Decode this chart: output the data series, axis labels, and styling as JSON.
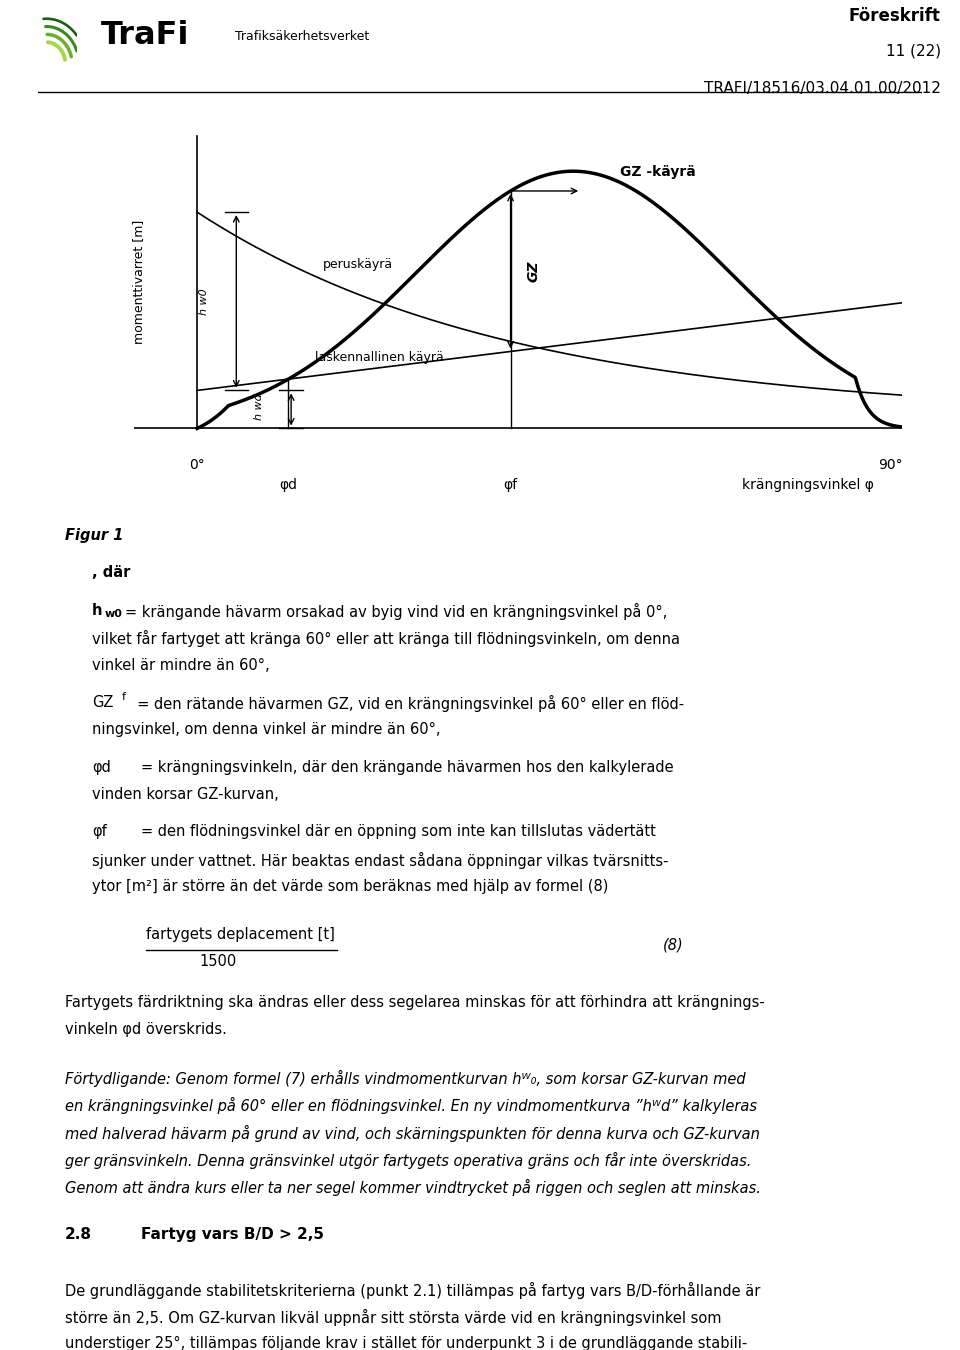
{
  "header_bold": "Föreskrift",
  "header_line2": "11 (22)",
  "header_line3": "TRAFI/18516/03.04.01.00/2012",
  "trafi_text": "TraFi",
  "trafi_sub": "Trafiksäkerhetsverket",
  "ylabel": "momenttivarret [m]",
  "xlabel_0": "0°",
  "xlabel_90": "90°",
  "label_phid": "φd",
  "label_phif": "φf",
  "label_krangning": "krängningsvinkel φ",
  "label_gz_curve": "GZ -käyrä",
  "label_peruskayra": "peruskäyrä",
  "label_laskennallinen": "laskennallinen käyrä",
  "label_gz": "GZ",
  "fig1_title": "Figur 1",
  "formula_num": "(8)",
  "formula_frac_num": "fartygets deplacement [t]",
  "formula_frac_den": "1500",
  "section_bold": "2.8",
  "section_title": "Fartyg vars B/D > 2,5"
}
